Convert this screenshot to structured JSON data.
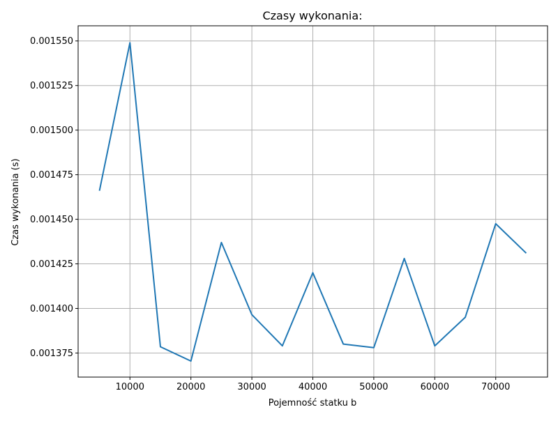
{
  "chart_data": {
    "type": "line",
    "title": "Czasy wykonania:",
    "xlabel": "Pojemność statku b",
    "ylabel": "Czas wykonania (s)",
    "xlim": [
      1500,
      78500
    ],
    "ylim": [
      0.0013615,
      0.0015585
    ],
    "xticks": [
      10000,
      20000,
      30000,
      40000,
      50000,
      60000,
      70000
    ],
    "xtick_labels": [
      "10000",
      "20000",
      "30000",
      "40000",
      "50000",
      "60000",
      "70000"
    ],
    "yticks": [
      0.001375,
      0.0014,
      0.001425,
      0.00145,
      0.001475,
      0.0015,
      0.001525,
      0.00155
    ],
    "ytick_labels": [
      "0.001375",
      "0.001400",
      "0.001425",
      "0.001450",
      "0.001475",
      "0.001500",
      "0.001525",
      "0.001550"
    ],
    "grid": true,
    "series": [
      {
        "color": "#1f77b4",
        "x": [
          5000,
          10000,
          15000,
          20000,
          25000,
          30000,
          35000,
          40000,
          45000,
          50000,
          55000,
          60000,
          65000,
          70000,
          75000
        ],
        "y": [
          0.001466,
          0.001549,
          0.0013785,
          0.0013705,
          0.001437,
          0.0013965,
          0.001379,
          0.00142,
          0.00138,
          0.001378,
          0.001428,
          0.001379,
          0.001395,
          0.0014475,
          0.001431
        ]
      }
    ]
  }
}
